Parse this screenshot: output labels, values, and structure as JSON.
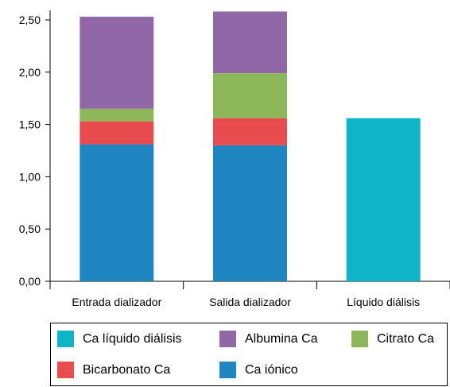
{
  "chart_data": {
    "type": "bar",
    "stacked": true,
    "categories": [
      "Entrada dializador",
      "Salida dializador",
      "Líquido diálisis"
    ],
    "series": [
      {
        "name": "Ca iónico",
        "color": "#1f86c1",
        "values": [
          1.31,
          1.3,
          0
        ]
      },
      {
        "name": "Bicarbonato Ca",
        "color": "#e84c4f",
        "values": [
          0.22,
          0.26,
          0
        ]
      },
      {
        "name": "Citrato Ca",
        "color": "#8db85a",
        "values": [
          0.12,
          0.43,
          0
        ]
      },
      {
        "name": "Albumina Ca",
        "color": "#9067a7",
        "values": [
          0.88,
          0.59,
          0
        ]
      },
      {
        "name": "Ca líquido diálisis",
        "color": "#0fb4c8",
        "values": [
          0,
          0,
          1.56
        ]
      }
    ],
    "yticks": [
      "0,00",
      "0,50",
      "1,00",
      "1,50",
      "2,00",
      "2,50"
    ],
    "ylim": [
      0,
      2.5
    ],
    "legend_position": "bottom"
  },
  "legend": {
    "rows": [
      [
        "Ca líquido diálisis",
        "Albumina Ca",
        "Citrato Ca"
      ],
      [
        "Bicarbonato Ca",
        "Ca iónico"
      ]
    ]
  }
}
